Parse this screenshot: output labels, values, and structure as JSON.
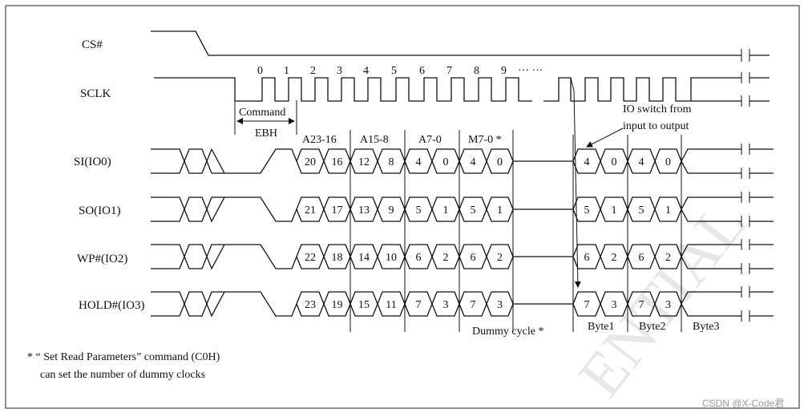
{
  "signals": {
    "cs": "CS#",
    "sclk": "SCLK",
    "si": "SI(IO0)",
    "so": "SO(IO1)",
    "wp": "WP#(IO2)",
    "hold": "HOLD#(IO3)"
  },
  "clock_numbers": [
    "0",
    "1",
    "2",
    "3",
    "4",
    "5",
    "6",
    "7",
    "8",
    "9"
  ],
  "clock_ellipsis": "··· ···",
  "command": {
    "label": "Command",
    "code": "EBH"
  },
  "field_headers": [
    "A23-16",
    "A15-8",
    "A7-0",
    "M7-0 *"
  ],
  "io_switch_note": {
    "line1": "IO switch from",
    "line2": "input to output"
  },
  "lanes": [
    {
      "before": [
        "20",
        "16",
        "12",
        "8",
        "4",
        "0",
        "4",
        "0"
      ],
      "after": [
        "4",
        "0",
        "4",
        "0"
      ]
    },
    {
      "before": [
        "21",
        "17",
        "13",
        "9",
        "5",
        "1",
        "5",
        "1"
      ],
      "after": [
        "5",
        "1",
        "5",
        "1"
      ]
    },
    {
      "before": [
        "22",
        "18",
        "14",
        "10",
        "6",
        "2",
        "6",
        "2"
      ],
      "after": [
        "6",
        "2",
        "6",
        "2"
      ]
    },
    {
      "before": [
        "23",
        "19",
        "15",
        "11",
        "7",
        "3",
        "7",
        "3"
      ],
      "after": [
        "7",
        "3",
        "7",
        "3"
      ]
    }
  ],
  "dummy_cycle": "Dummy cycle *",
  "bytes": [
    "Byte1",
    "Byte2",
    "Byte3"
  ],
  "footnote": {
    "line1": "* “ Set Read Parameters” command (C0H)",
    "line2": "can set the number of dummy clocks"
  },
  "watermark_text": "ENTIAL",
  "credit": "CSDN @X-Code君"
}
